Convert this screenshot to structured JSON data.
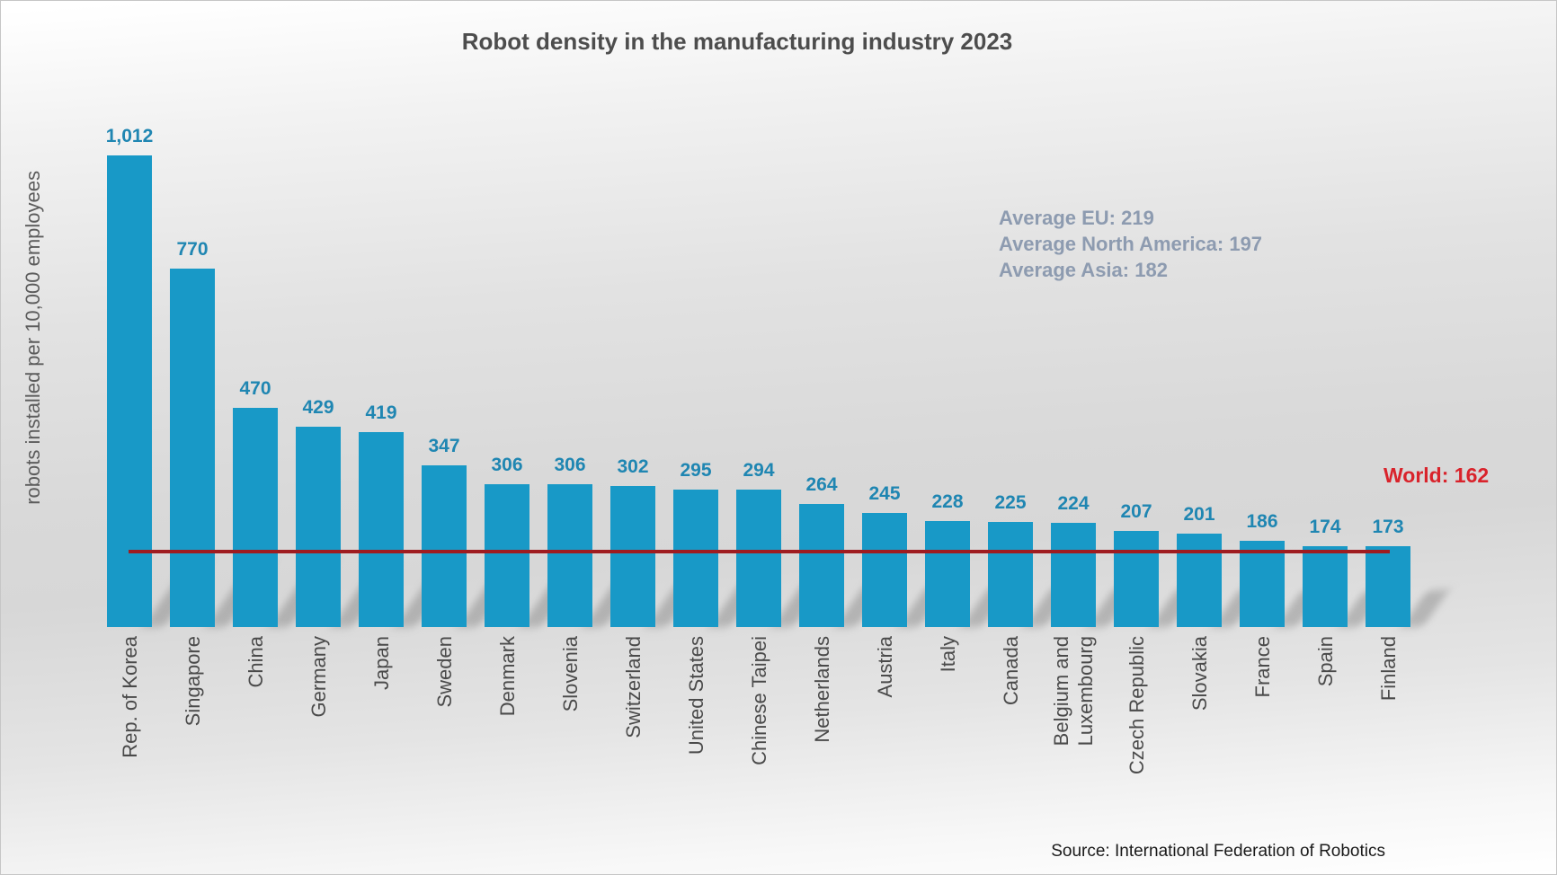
{
  "title": "Robot density in the manufacturing industry 2023",
  "y_axis_label": "robots installed per 10,000 employees",
  "source": "Source: International Federation of Robotics",
  "annotations": {
    "averages": [
      "Average EU: 219",
      "Average North America: 197",
      "Average Asia: 182"
    ],
    "world_label": "World: 162"
  },
  "colors": {
    "bar": "#1899c7",
    "value_label": "#1f86b2",
    "world_line": "#9f1c20",
    "world_text": "#d9232b",
    "averages_text": "#8d9bb0",
    "title_text": "#4d4d4d",
    "category_text": "#4a4a4a",
    "source_text": "#1a1a1a"
  },
  "chart_data": {
    "type": "bar",
    "title": "Robot density in the manufacturing industry 2023",
    "xlabel": "",
    "ylabel": "robots installed per 10,000 employees",
    "ylim": [
      0,
      1100
    ],
    "grid": false,
    "legend": "none",
    "categories": [
      "Rep. of Korea",
      "Singapore",
      "China",
      "Germany",
      "Japan",
      "Sweden",
      "Denmark",
      "Slovenia",
      "Switzerland",
      "United States",
      "Chinese Taipei",
      "Netherlands",
      "Austria",
      "Italy",
      "Canada",
      "Belgium and\nLuxembourg",
      "Czech Republic",
      "Slovakia",
      "France",
      "Spain",
      "Finland"
    ],
    "values": [
      1012,
      770,
      470,
      429,
      419,
      347,
      306,
      306,
      302,
      295,
      294,
      264,
      245,
      228,
      225,
      224,
      207,
      201,
      186,
      174,
      173
    ],
    "value_labels": [
      "1,012",
      "770",
      "470",
      "429",
      "419",
      "347",
      "306",
      "306",
      "302",
      "295",
      "294",
      "264",
      "245",
      "228",
      "225",
      "224",
      "207",
      "201",
      "186",
      "174",
      "173"
    ],
    "reference_line": {
      "label": "World",
      "value": 162
    },
    "annotations": [
      {
        "label": "Average EU",
        "value": 219
      },
      {
        "label": "Average North America",
        "value": 197
      },
      {
        "label": "Average Asia",
        "value": 182
      }
    ],
    "source": "International Federation of Robotics"
  }
}
